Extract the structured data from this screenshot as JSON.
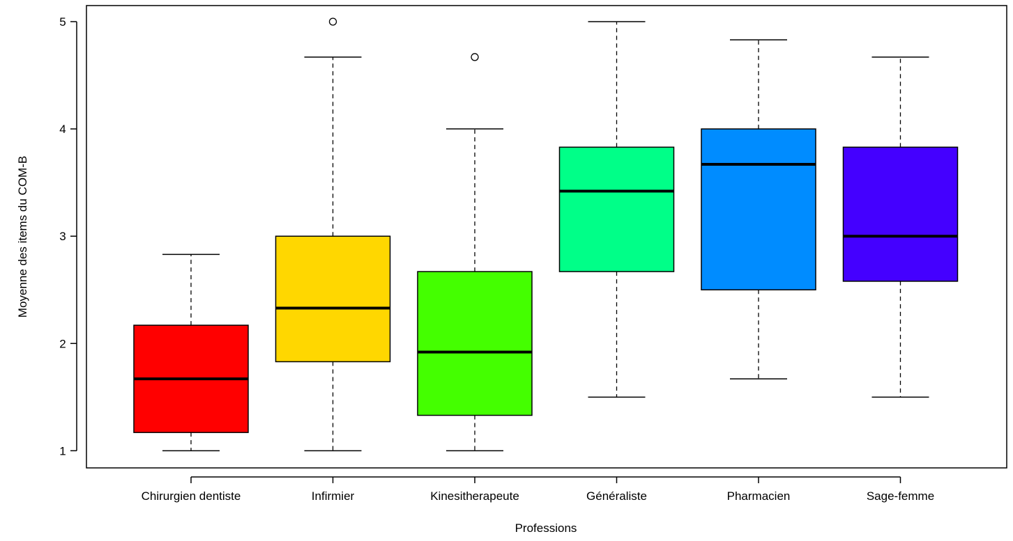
{
  "chart_data": {
    "type": "boxplot",
    "xlabel": "Professions",
    "ylabel": "Moyenne des items du COM-B",
    "ylim": [
      0.84,
      5.15
    ],
    "yticks": [
      1,
      2,
      3,
      4,
      5
    ],
    "grid": false,
    "legend": "none",
    "categories": [
      "Chirurgien dentiste",
      "Infirmier",
      "Kinesitherapeute",
      "Généraliste",
      "Pharmacien",
      "Sage-femme"
    ],
    "colors": [
      "#ff0000",
      "#ffd700",
      "#44ff00",
      "#00ff88",
      "#008cff",
      "#4400ff"
    ],
    "boxes": [
      {
        "whisker_low": 1.0,
        "q1": 1.17,
        "median": 1.67,
        "q3": 2.17,
        "whisker_high": 2.83,
        "outliers": []
      },
      {
        "whisker_low": 1.0,
        "q1": 1.83,
        "median": 2.33,
        "q3": 3.0,
        "whisker_high": 4.67,
        "outliers": [
          5.0
        ]
      },
      {
        "whisker_low": 1.0,
        "q1": 1.33,
        "median": 1.92,
        "q3": 2.67,
        "whisker_high": 4.0,
        "outliers": [
          4.67
        ]
      },
      {
        "whisker_low": 1.5,
        "q1": 2.67,
        "median": 3.42,
        "q3": 3.83,
        "whisker_high": 5.0,
        "outliers": []
      },
      {
        "whisker_low": 1.67,
        "q1": 2.5,
        "median": 3.67,
        "q3": 4.0,
        "whisker_high": 4.83,
        "outliers": []
      },
      {
        "whisker_low": 1.5,
        "q1": 2.58,
        "median": 3.0,
        "q3": 3.83,
        "whisker_high": 4.67,
        "outliers": []
      }
    ]
  }
}
